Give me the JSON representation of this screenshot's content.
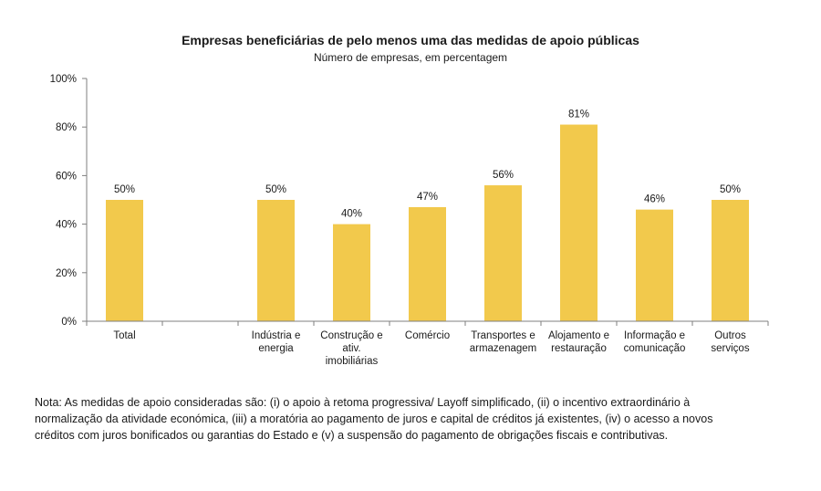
{
  "chart_data": {
    "type": "bar",
    "title": "Empresas beneficiárias de pelo menos uma das medidas de apoio públicas",
    "subtitle": "Número de empresas, em percentagem",
    "categories": [
      [
        "Total"
      ],
      [],
      [
        "Indústria e",
        "energia"
      ],
      [
        "Construção e",
        "ativ.",
        "imobiliárias"
      ],
      [
        "Comércio"
      ],
      [
        "Transportes e",
        "armazenagem"
      ],
      [
        "Alojamento e",
        "restauração"
      ],
      [
        "Informação e",
        "comunicação"
      ],
      [
        "Outros",
        "serviços"
      ]
    ],
    "values": [
      50,
      null,
      50,
      40,
      47,
      56,
      81,
      46,
      50
    ],
    "data_labels": [
      "50%",
      "",
      "50%",
      "40%",
      "47%",
      "56%",
      "81%",
      "46%",
      "50%"
    ],
    "y_ticks": [
      0,
      20,
      40,
      60,
      80,
      100
    ],
    "y_tick_labels": [
      "0%",
      "20%",
      "40%",
      "60%",
      "80%",
      "100%"
    ],
    "ylim": [
      0,
      100
    ],
    "grid": false,
    "legend": "none",
    "bar_color": "#F2C94C"
  },
  "note": "Nota: As medidas de apoio consideradas são: (i) o apoio à retoma progressiva/ Layoff simplificado, (ii) o incentivo extraordinário à normalização da atividade económica, (iii) a moratória ao pagamento de juros e capital de créditos já existentes, (iv) o acesso a novos créditos com juros bonificados ou garantias do Estado e (v) a suspensão do pagamento de obrigações fiscais e contributivas."
}
